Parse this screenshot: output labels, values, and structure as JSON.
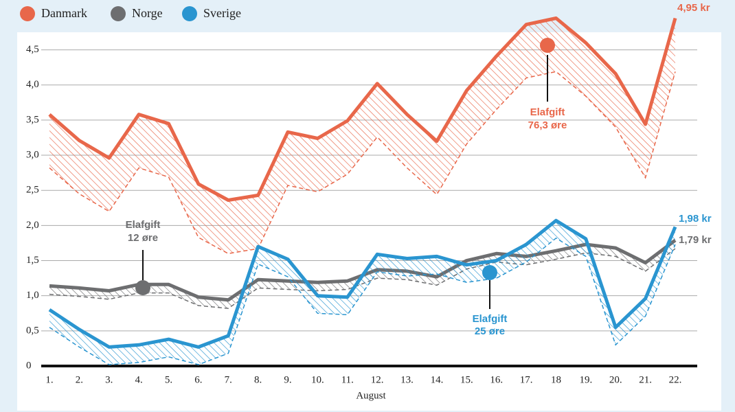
{
  "chart_data": {
    "type": "line",
    "x_label": "August",
    "categories": [
      "1.",
      "2.",
      "3.",
      "4.",
      "5.",
      "6.",
      "7.",
      "8.",
      "9.",
      "10.",
      "11.",
      "12.",
      "13.",
      "14.",
      "15.",
      "16.",
      "17.",
      "18",
      "19.",
      "20.",
      "21.",
      "22."
    ],
    "ylim": [
      0,
      4.75
    ],
    "yticks": [
      0,
      {
        "value": 0.5,
        "label": "0,5"
      },
      {
        "value": 1.0,
        "label": "1,0"
      },
      {
        "value": 1.5,
        "label": "1,5"
      },
      {
        "value": 2.0,
        "label": "2,0"
      },
      {
        "value": 2.5,
        "label": "2,5"
      },
      {
        "value": 3.0,
        "label": "3,0"
      },
      {
        "value": 3.5,
        "label": "3,5"
      },
      {
        "value": 4.0,
        "label": "4,0"
      },
      {
        "value": 4.5,
        "label": "4,5"
      }
    ],
    "grid": true,
    "series": [
      {
        "name": "Danmark",
        "color": "#e8674a",
        "values": [
          3.58,
          3.21,
          2.96,
          3.58,
          3.45,
          2.59,
          2.36,
          2.43,
          3.33,
          3.24,
          3.49,
          4.02,
          3.58,
          3.2,
          3.92,
          4.41,
          4.86,
          4.95,
          4.6,
          4.16,
          3.44,
          4.95
        ],
        "values_excl_tax": [
          2.82,
          2.45,
          2.2,
          2.82,
          2.69,
          1.83,
          1.6,
          1.67,
          2.57,
          2.48,
          2.73,
          3.26,
          2.82,
          2.44,
          3.16,
          3.65,
          4.1,
          4.19,
          3.84,
          3.4,
          2.68,
          4.19
        ],
        "end_label": "4,95 kr",
        "annotation": [
          "Elafgift",
          "76,3 øre"
        ]
      },
      {
        "name": "Norge",
        "color": "#6d6e70",
        "values": [
          1.14,
          1.11,
          1.07,
          1.16,
          1.16,
          0.98,
          0.94,
          1.23,
          1.21,
          1.19,
          1.21,
          1.37,
          1.35,
          1.27,
          1.5,
          1.6,
          1.56,
          1.64,
          1.73,
          1.68,
          1.47,
          1.79
        ],
        "values_excl_tax": [
          1.02,
          0.99,
          0.95,
          1.04,
          1.04,
          0.86,
          0.82,
          1.11,
          1.09,
          1.07,
          1.09,
          1.25,
          1.23,
          1.15,
          1.38,
          1.48,
          1.44,
          1.52,
          1.61,
          1.56,
          1.35,
          1.67
        ],
        "end_label": "1,79 kr",
        "annotation": [
          "Elafgift",
          "12 øre"
        ]
      },
      {
        "name": "Sverige",
        "color": "#2a95d0",
        "values": [
          0.8,
          0.52,
          0.27,
          0.3,
          0.38,
          0.27,
          0.43,
          1.7,
          1.52,
          1.0,
          0.98,
          1.59,
          1.53,
          1.56,
          1.44,
          1.5,
          1.73,
          2.07,
          1.81,
          0.55,
          0.96,
          1.98
        ],
        "values_excl_tax": [
          0.55,
          0.27,
          0.02,
          0.05,
          0.13,
          0.02,
          0.18,
          1.45,
          1.27,
          0.75,
          0.73,
          1.34,
          1.28,
          1.31,
          1.19,
          1.25,
          1.48,
          1.82,
          1.56,
          0.3,
          0.71,
          1.73
        ],
        "end_label": "1,98 kr",
        "annotation": [
          "Elafgift",
          "25 øre"
        ]
      }
    ]
  }
}
